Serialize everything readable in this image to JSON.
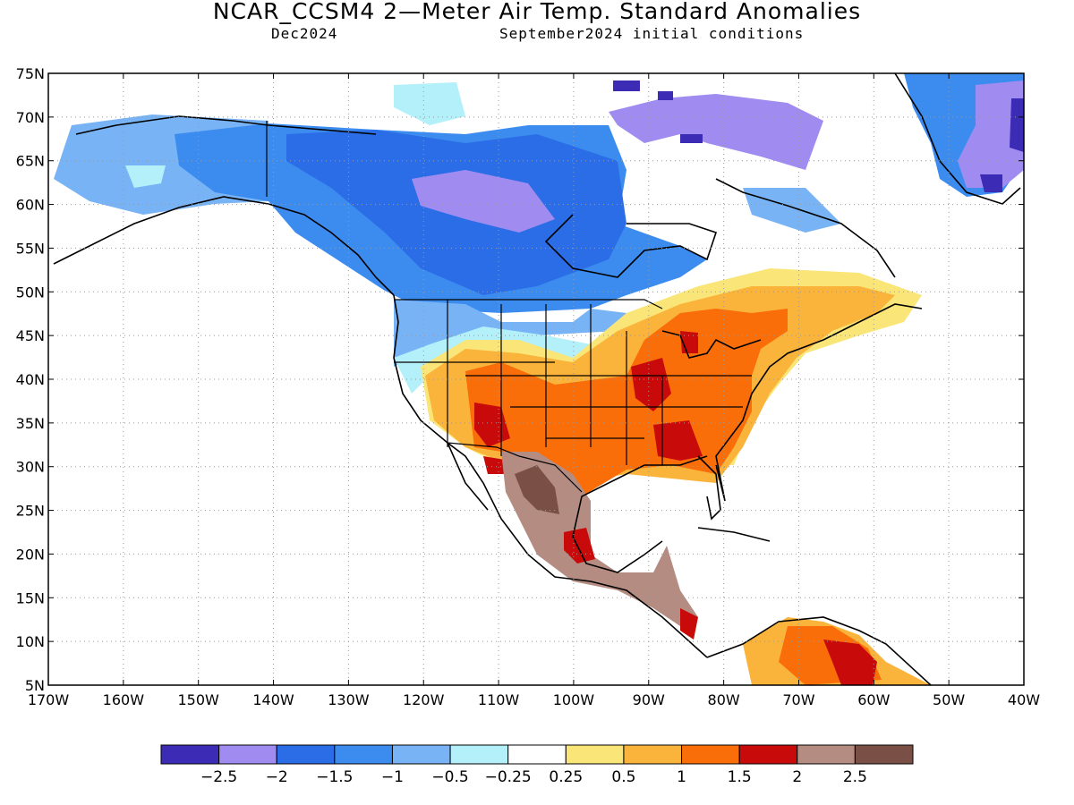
{
  "header": {
    "title": "NCAR_CCSM4 2—Meter Air Temp. Standard Anomalies",
    "valid_month": "Dec2024",
    "init": "September2024 initial conditions"
  },
  "map": {
    "lat_ticks": [
      "75N",
      "70N",
      "65N",
      "60N",
      "55N",
      "50N",
      "45N",
      "40N",
      "35N",
      "30N",
      "25N",
      "20N",
      "15N",
      "10N",
      "5N"
    ],
    "lon_ticks": [
      "170W",
      "160W",
      "150W",
      "140W",
      "130W",
      "120W",
      "110W",
      "100W",
      "90W",
      "80W",
      "70W",
      "60W",
      "50W",
      "40W"
    ],
    "grid": true
  },
  "colorbar": {
    "colors": [
      "#3c2bb4",
      "#a08cf0",
      "#2b6de6",
      "#3c8cf0",
      "#78b4f5",
      "#b4f0fa",
      "#ffffff",
      "#fae678",
      "#fab43c",
      "#fa6e0a",
      "#c80a0a",
      "#b48c82",
      "#7a5046"
    ],
    "labels": [
      "−2.5",
      "−2",
      "−1.5",
      "−1",
      "−0.5",
      "−0.25",
      "0.25",
      "0.5",
      "1",
      "1.5",
      "2",
      "2.5"
    ]
  }
}
